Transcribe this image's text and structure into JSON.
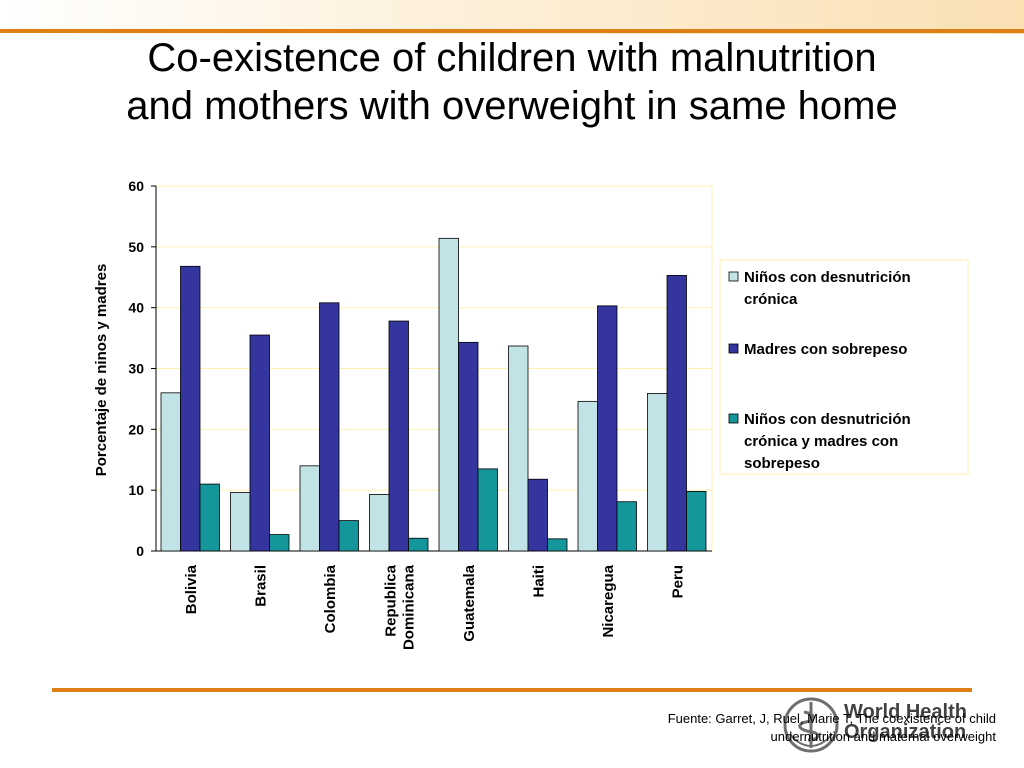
{
  "slide": {
    "title_line1": "Co-existence of children with malnutrition",
    "title_line2": "and mothers with overweight in same home",
    "source_line1": "Fuente: Garret, J, Ruel, Marie T, The coexistence of child",
    "source_line2": "undernutrition and maternal overweight",
    "logo_line1": "World Health",
    "logo_line2": "Organization",
    "accent_color": "#e07f16"
  },
  "chart_data": {
    "type": "bar",
    "title": "",
    "xlabel": "",
    "ylabel": "Porcentaje de ninos y madres",
    "ylim": [
      0,
      60
    ],
    "yticks": [
      "0",
      "10",
      "20",
      "30",
      "40",
      "50",
      "60"
    ],
    "grid": true,
    "legend_position": "right",
    "categories": [
      "Bolivia",
      "Brasil",
      "Colombia",
      "Republica Dominicana",
      "Guatemala",
      "Haiti",
      "Nicaregua",
      "Peru"
    ],
    "series": [
      {
        "name": "Niños con desnutrición crónica",
        "color": "#c1e3e5",
        "values": [
          26.0,
          9.6,
          14.0,
          9.3,
          51.4,
          33.7,
          24.6,
          25.9
        ]
      },
      {
        "name": "Madres con sobrepeso",
        "color": "#3535a0",
        "values": [
          46.8,
          35.5,
          40.8,
          37.8,
          34.3,
          11.8,
          40.3,
          45.3
        ]
      },
      {
        "name": "Niños con desnutrición crónica y madres con sobrepeso",
        "color": "#14969a",
        "values": [
          11.0,
          2.7,
          5.0,
          2.1,
          13.5,
          2.0,
          8.1,
          9.8
        ]
      }
    ]
  }
}
